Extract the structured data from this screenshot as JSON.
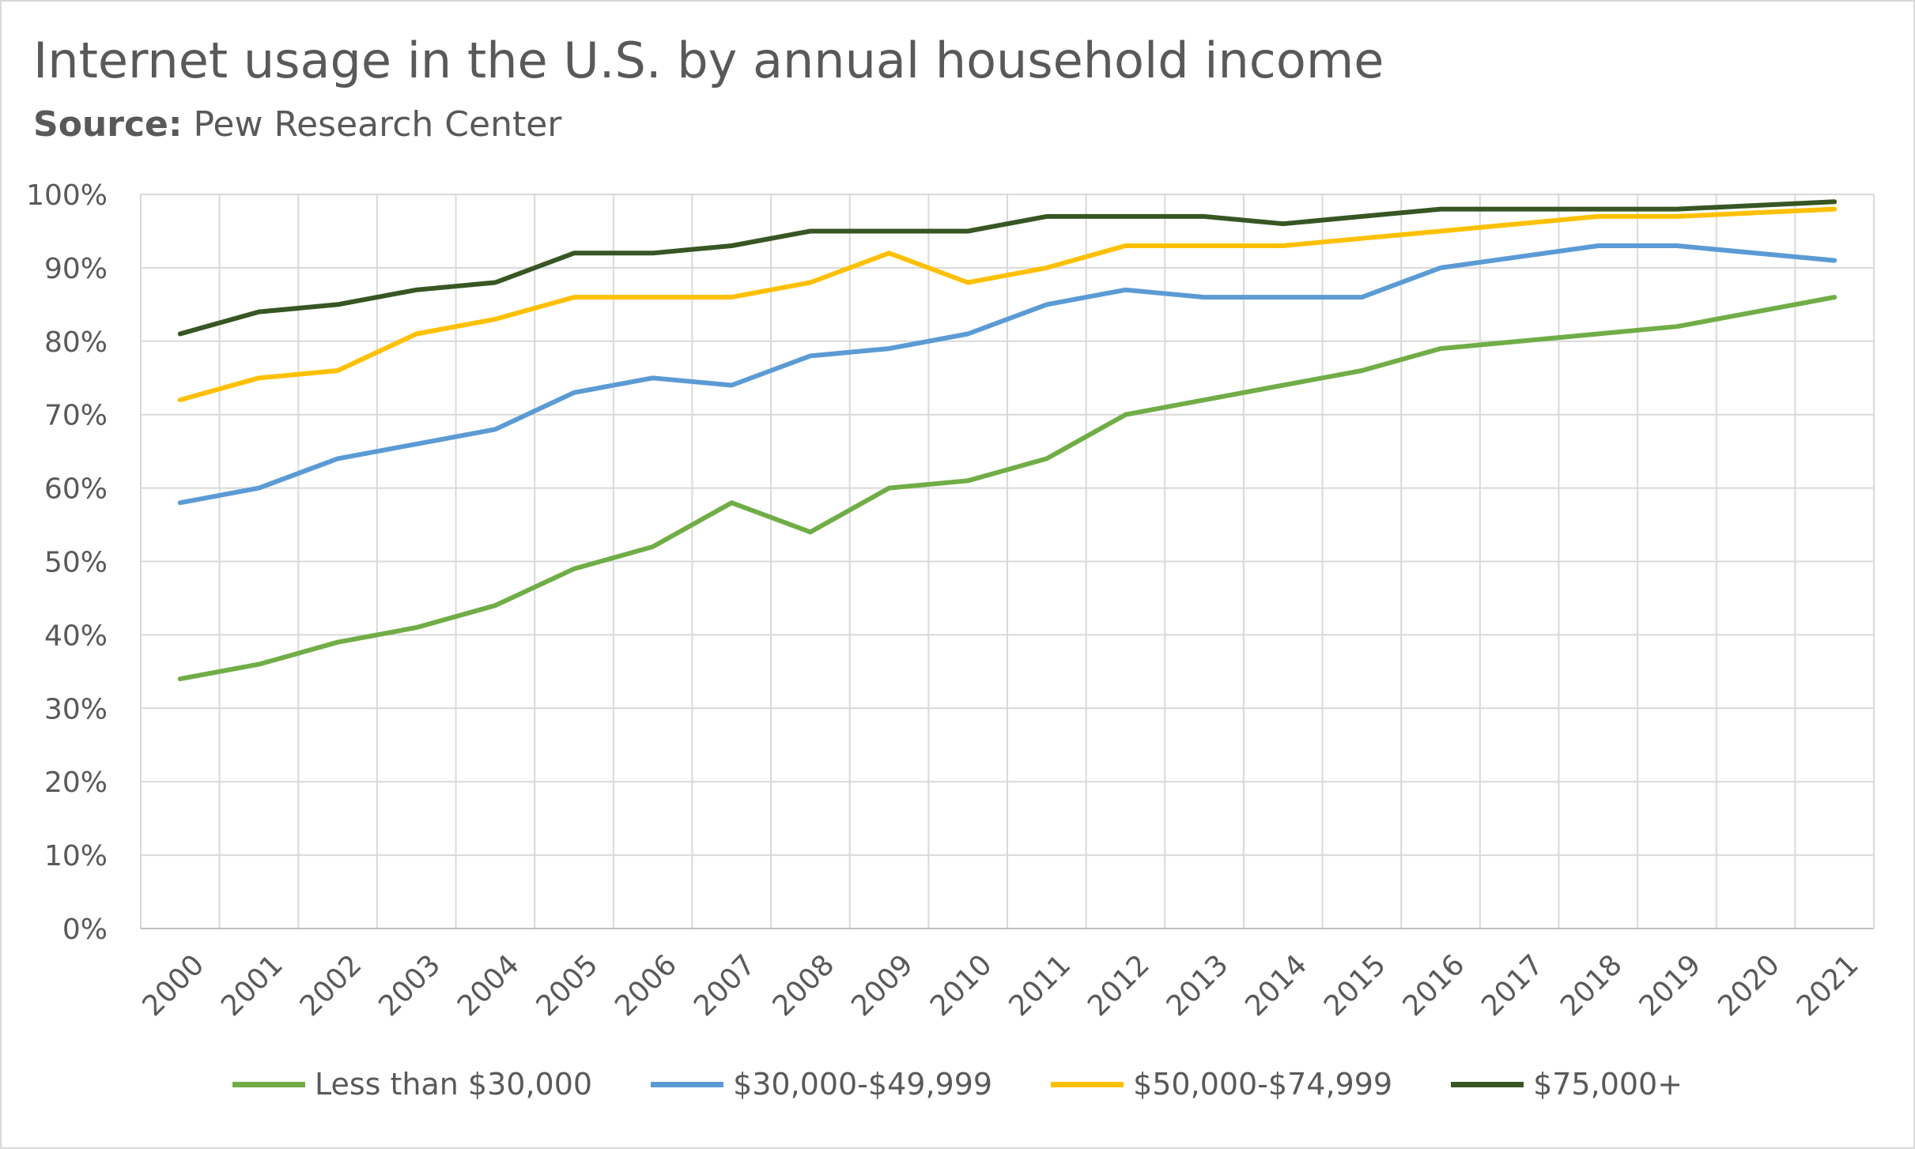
{
  "title": "Internet usage in the U.S. by annual household income",
  "subtitle_label": "Source:",
  "subtitle_value": "Pew Research Center",
  "chart_data": {
    "type": "line",
    "x": [
      "2000",
      "2001",
      "2002",
      "2003",
      "2004",
      "2005",
      "2006",
      "2007",
      "2008",
      "2009",
      "2010",
      "2011",
      "2012",
      "2013",
      "2014",
      "2015",
      "2016",
      "2017",
      "2018",
      "2019",
      "2020",
      "2021"
    ],
    "y_tick_labels": [
      "0%",
      "10%",
      "20%",
      "30%",
      "40%",
      "50%",
      "60%",
      "70%",
      "80%",
      "90%",
      "100%"
    ],
    "ylim": [
      0,
      100
    ],
    "y_step": 10,
    "grid": true,
    "legend_position": "bottom",
    "series": [
      {
        "name": "Less than $30,000",
        "color": "#70ad47",
        "points": [
          [
            0,
            34
          ],
          [
            1,
            36
          ],
          [
            2,
            39
          ],
          [
            3,
            41
          ],
          [
            4,
            44
          ],
          [
            5,
            49
          ],
          [
            6,
            52
          ],
          [
            7,
            58
          ],
          [
            8,
            54
          ],
          [
            9,
            60
          ],
          [
            10,
            61
          ],
          [
            11,
            64
          ],
          [
            12,
            70
          ],
          [
            13,
            72
          ],
          [
            14,
            74
          ],
          [
            15,
            76
          ],
          [
            16,
            79
          ],
          [
            18,
            81
          ],
          [
            19,
            82
          ],
          [
            21,
            86
          ]
        ]
      },
      {
        "name": "$30,000-$49,999",
        "color": "#5b9bd5",
        "points": [
          [
            0,
            58
          ],
          [
            1,
            60
          ],
          [
            2,
            64
          ],
          [
            3,
            66
          ],
          [
            4,
            68
          ],
          [
            5,
            73
          ],
          [
            6,
            75
          ],
          [
            7,
            74
          ],
          [
            8,
            78
          ],
          [
            9,
            79
          ],
          [
            10,
            81
          ],
          [
            11,
            85
          ],
          [
            12,
            87
          ],
          [
            13,
            86
          ],
          [
            14,
            86
          ],
          [
            15,
            86
          ],
          [
            16,
            90
          ],
          [
            18,
            93
          ],
          [
            19,
            93
          ],
          [
            21,
            91
          ]
        ]
      },
      {
        "name": "$50,000-$74,999",
        "color": "#ffc000",
        "points": [
          [
            0,
            72
          ],
          [
            1,
            75
          ],
          [
            2,
            76
          ],
          [
            3,
            81
          ],
          [
            4,
            83
          ],
          [
            5,
            86
          ],
          [
            6,
            86
          ],
          [
            7,
            86
          ],
          [
            8,
            88
          ],
          [
            9,
            92
          ],
          [
            10,
            88
          ],
          [
            11,
            90
          ],
          [
            12,
            93
          ],
          [
            13,
            93
          ],
          [
            14,
            93
          ],
          [
            15,
            94
          ],
          [
            16,
            95
          ],
          [
            18,
            97
          ],
          [
            19,
            97
          ],
          [
            21,
            98
          ]
        ]
      },
      {
        "name": "$75,000+",
        "color": "#375623",
        "points": [
          [
            0,
            81
          ],
          [
            1,
            84
          ],
          [
            2,
            85
          ],
          [
            3,
            87
          ],
          [
            4,
            88
          ],
          [
            5,
            92
          ],
          [
            6,
            92
          ],
          [
            7,
            93
          ],
          [
            8,
            95
          ],
          [
            9,
            95
          ],
          [
            10,
            95
          ],
          [
            11,
            97
          ],
          [
            12,
            97
          ],
          [
            13,
            97
          ],
          [
            14,
            96
          ],
          [
            15,
            97
          ],
          [
            16,
            98
          ],
          [
            18,
            98
          ],
          [
            19,
            98
          ],
          [
            21,
            99
          ]
        ]
      }
    ]
  }
}
